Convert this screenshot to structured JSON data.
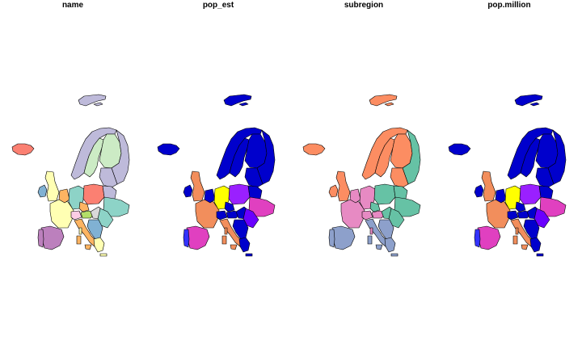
{
  "panels": [
    {
      "title": "name",
      "colors": {
        "iceland": "#fb8072",
        "svalbard": "#bebada",
        "norway": "#bebada",
        "sweden": "#ccebc5",
        "finland": "#ccebc5",
        "russia": "#bebada",
        "baltic": "#bebada",
        "ireland": "#80b1d3",
        "uk": "#ffffb3",
        "france": "#ffffb3",
        "iberia": "#bc80bd",
        "portugal": "#bc80bd",
        "benelux": "#fdb462",
        "germany": "#8dd3c7",
        "poland": "#fb8072",
        "belarus": "#bebada",
        "ukraine": "#8dd3c7",
        "czech": "#fdb462",
        "austria": "#b3de69",
        "alps": "#fccde5",
        "italy": "#fdb462",
        "hungary": "#d9d9d9",
        "romania": "#8dd3c7",
        "balkans": "#80b1d3",
        "greece": "#ffffb3",
        "corsica": "#ffffb3",
        "sardinia": "#fdb462",
        "sicily": "#fdb462",
        "crete": "#ffffb3"
      }
    },
    {
      "title": "pop_est",
      "colors": {
        "iceland": "#0000cc",
        "svalbard": "#0000cc",
        "norway": "#0000cc",
        "sweden": "#0000cc",
        "finland": "#0000cc",
        "russia": "#0000cc",
        "baltic": "#0000cc",
        "ireland": "#0000cc",
        "uk": "#f28e5c",
        "france": "#f28e5c",
        "iberia": "#e040c0",
        "portugal": "#3333ff",
        "benelux": "#0000cc",
        "germany": "#ffff00",
        "poland": "#9a20ff",
        "belarus": "#0000cc",
        "ukraine": "#e040c0",
        "czech": "#0000cc",
        "austria": "#0000cc",
        "alps": "#0000cc",
        "italy": "#f28e5c",
        "hungary": "#0000cc",
        "romania": "#6a00ff",
        "balkans": "#0000cc",
        "greece": "#0000cc",
        "corsica": "#f28e5c",
        "sardinia": "#f28e5c",
        "sicily": "#f28e5c",
        "crete": "#0000cc"
      }
    },
    {
      "title": "subregion",
      "colors": {
        "iceland": "#fc8d62",
        "svalbard": "#fc8d62",
        "norway": "#fc8d62",
        "sweden": "#fc8d62",
        "finland": "#fc8d62",
        "russia": "#66c2a5",
        "baltic": "#fc8d62",
        "ireland": "#fc8d62",
        "uk": "#fc8d62",
        "france": "#e78ac3",
        "iberia": "#8da0cb",
        "portugal": "#8da0cb",
        "benelux": "#e78ac3",
        "germany": "#e78ac3",
        "poland": "#66c2a5",
        "belarus": "#66c2a5",
        "ukraine": "#66c2a5",
        "czech": "#66c2a5",
        "austria": "#e78ac3",
        "alps": "#e78ac3",
        "italy": "#8da0cb",
        "hungary": "#66c2a5",
        "romania": "#66c2a5",
        "balkans": "#8da0cb",
        "greece": "#8da0cb",
        "corsica": "#e78ac3",
        "sardinia": "#8da0cb",
        "sicily": "#8da0cb",
        "crete": "#8da0cb"
      }
    },
    {
      "title": "pop.million",
      "colors": {
        "iceland": "#0000cc",
        "svalbard": "#0000cc",
        "norway": "#0000cc",
        "sweden": "#0000cc",
        "finland": "#0000cc",
        "russia": "#0000cc",
        "baltic": "#0000cc",
        "ireland": "#0000cc",
        "uk": "#f28e5c",
        "france": "#f28e5c",
        "iberia": "#e040c0",
        "portugal": "#3333ff",
        "benelux": "#0000cc",
        "germany": "#ffff00",
        "poland": "#9a20ff",
        "belarus": "#0000cc",
        "ukraine": "#e040c0",
        "czech": "#0000cc",
        "austria": "#0000cc",
        "alps": "#0000cc",
        "italy": "#f28e5c",
        "hungary": "#0000cc",
        "romania": "#6a00ff",
        "balkans": "#0000cc",
        "greece": "#0000cc",
        "corsica": "#f28e5c",
        "sardinia": "#f28e5c",
        "sicily": "#f28e5c",
        "crete": "#0000cc"
      }
    }
  ]
}
